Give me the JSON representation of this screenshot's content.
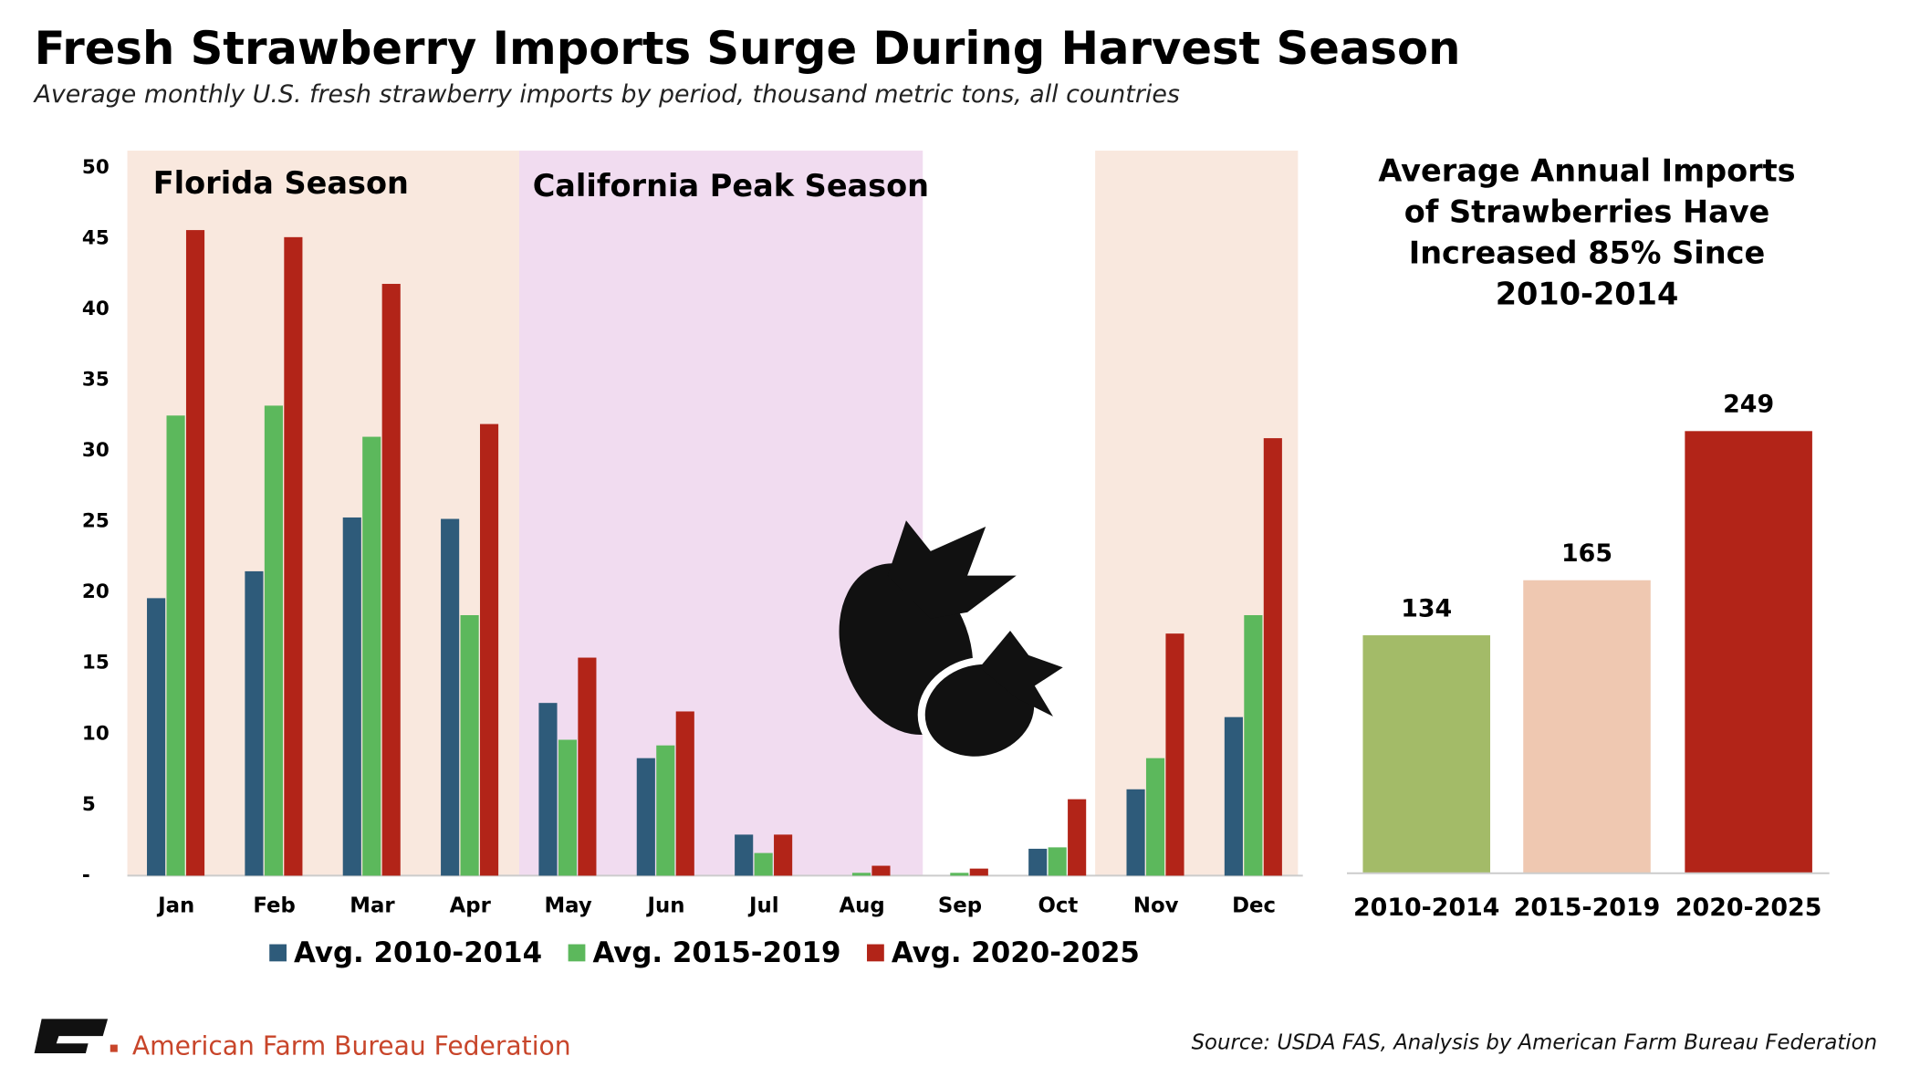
{
  "header": {
    "title": "Fresh Strawberry Imports Surge During Harvest Season",
    "subtitle": "Average monthly U.S. fresh strawberry imports by period, thousand metric tons, all countries"
  },
  "chart_data": [
    {
      "type": "bar",
      "categories": [
        "Jan",
        "Feb",
        "Mar",
        "Apr",
        "May",
        "Jun",
        "Jul",
        "Aug",
        "Sep",
        "Oct",
        "Nov",
        "Dec"
      ],
      "series": [
        {
          "name": "Avg. 2010-2014",
          "color": "#2e5b7a",
          "values": [
            19.6,
            21.5,
            25.3,
            25.2,
            12.2,
            8.3,
            2.9,
            0,
            0,
            1.9,
            6.1,
            11.2
          ]
        },
        {
          "name": "Avg. 2015-2019",
          "color": "#5cb85c",
          "values": [
            32.5,
            33.2,
            31.0,
            18.4,
            9.6,
            9.2,
            1.6,
            0.2,
            0.2,
            2.0,
            8.3,
            18.4
          ]
        },
        {
          "name": "Avg. 2020-2025",
          "color": "#b22418",
          "values": [
            45.6,
            45.1,
            41.8,
            31.9,
            15.4,
            11.6,
            2.9,
            0.7,
            0.5,
            5.4,
            17.1,
            30.9
          ]
        }
      ],
      "ylim": [
        0,
        50
      ],
      "yticks": [
        {
          "value": 0,
          "label": "-"
        },
        5,
        10,
        15,
        20,
        25,
        30,
        35,
        40,
        45,
        50
      ],
      "annotations": [
        "Florida Season",
        "California Peak Season"
      ],
      "legend": "bottom"
    },
    {
      "type": "bar",
      "title": [
        "Average Annual Imports",
        "of Strawberries Have",
        "Increased 85% Since",
        "2010-2014"
      ],
      "categories": [
        "2010-2014",
        "2015-2019",
        "2020-2025"
      ],
      "values": [
        134,
        165,
        249
      ],
      "colors": [
        "#a3bb68",
        "#efc8b1",
        "#b22418"
      ]
    }
  ],
  "footer": {
    "organization": "American Farm Bureau Federation",
    "source": "Source: USDA FAS, Analysis by American Farm Bureau Federation"
  }
}
